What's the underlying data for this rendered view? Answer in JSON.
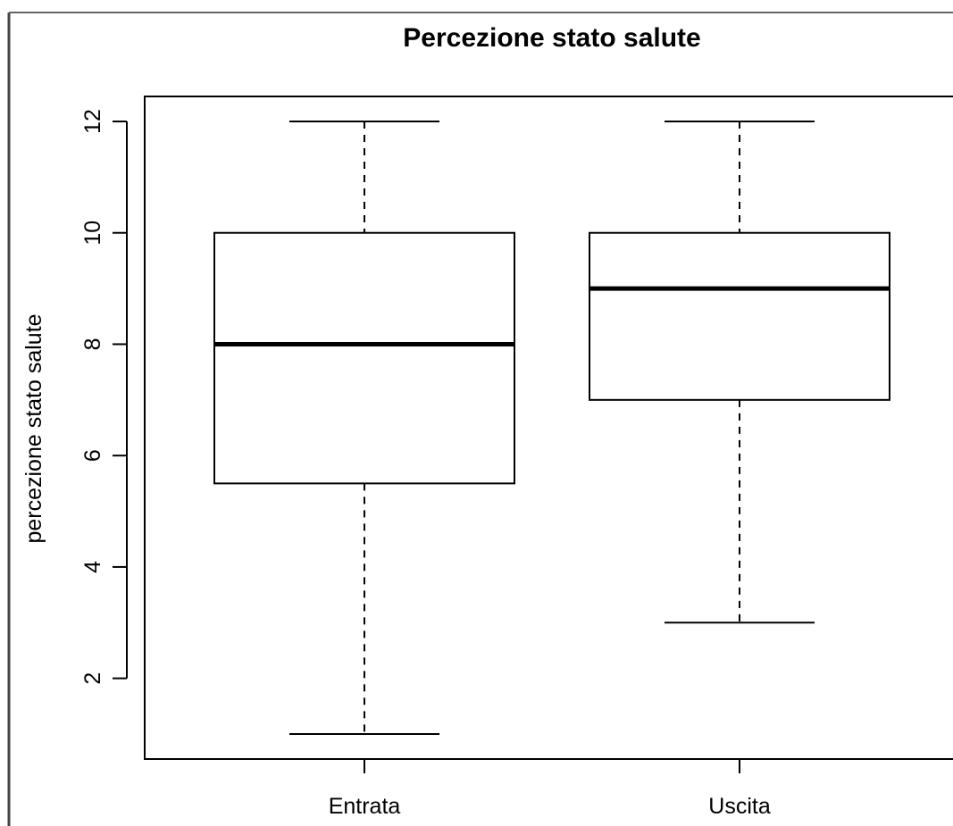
{
  "chart_data": {
    "type": "boxplot",
    "title": "Percezione stato salute",
    "xlabel": "",
    "ylabel": "percezione stato salute",
    "ylim": [
      0.6,
      12.45
    ],
    "yticks": [
      2,
      4,
      6,
      8,
      10,
      12
    ],
    "grid": false,
    "categories": [
      "Entrata",
      "Uscita"
    ],
    "boxes": [
      {
        "category": "Entrata",
        "min": 1,
        "q1": 5.5,
        "median": 8,
        "q3": 10,
        "max": 12
      },
      {
        "category": "Uscita",
        "min": 3,
        "q1": 7,
        "median": 9,
        "q3": 10,
        "max": 12
      }
    ]
  }
}
